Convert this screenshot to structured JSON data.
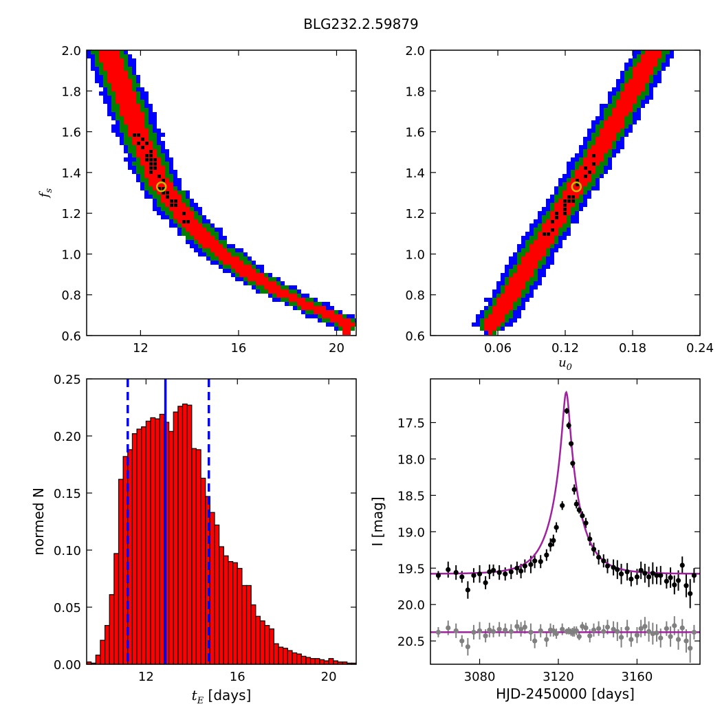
{
  "figure": {
    "title": "BLG232.2.59879"
  },
  "colors": {
    "level_1": "#0000ff",
    "level_2": "#008000",
    "level_3": "#ff0000",
    "level_4": "#000000",
    "best_fit_marker": "#bfbf00",
    "hist_bar": "#ff0000",
    "hist_lines": "#0000ff",
    "model_curve": "#a020a0",
    "data_points": "#000000",
    "residual_points": "#808080"
  },
  "chart_data": [
    {
      "id": "tE-fs",
      "type": "heatmap",
      "xlabel": "",
      "ylabel": "f_s",
      "xlim": [
        9.8,
        20.8
      ],
      "ylim": [
        0.6,
        2.0
      ],
      "xticks": [
        12,
        16,
        20
      ],
      "yticks": [
        0.6,
        0.8,
        1.0,
        1.2,
        1.4,
        1.6,
        1.8,
        2.0
      ],
      "best_fit": {
        "x": 12.85,
        "y": 1.33
      },
      "ridge": {
        "x": [
          10.65,
          11.3,
          12.05,
          12.85,
          13.8,
          14.85,
          16.2,
          17.6,
          19.3,
          20.4
        ],
        "y": [
          2.0,
          1.8,
          1.55,
          1.33,
          1.18,
          1.05,
          0.92,
          0.82,
          0.72,
          0.66
        ]
      },
      "half_widths": [
        0.42,
        0.66,
        0.92
      ],
      "core_half_width": 0.22,
      "core_y_range": [
        1.14,
        1.6
      ]
    },
    {
      "id": "u0-fs",
      "type": "heatmap",
      "xlabel": "u_0",
      "ylabel": "",
      "xlim": [
        0.0,
        0.24
      ],
      "ylim": [
        0.6,
        2.0
      ],
      "xticks": [
        0.06,
        0.12,
        0.18,
        0.24
      ],
      "yticks": [
        0.6,
        0.8,
        1.0,
        1.2,
        1.4,
        1.6,
        1.8,
        2.0
      ],
      "best_fit": {
        "x": 0.13,
        "y": 1.33
      },
      "ridge": {
        "x": [
          0.054,
          0.072,
          0.088,
          0.104,
          0.12,
          0.13,
          0.144,
          0.162,
          0.182,
          0.2
        ],
        "y": [
          0.64,
          0.8,
          0.95,
          1.1,
          1.24,
          1.33,
          1.45,
          1.62,
          1.82,
          2.0
        ]
      },
      "half_widths": [
        0.0085,
        0.0135,
        0.019
      ],
      "core_half_width": 0.0045,
      "core_y_range": [
        1.08,
        1.52
      ]
    },
    {
      "id": "tE-hist",
      "type": "bar",
      "xlabel": "t_E",
      "xlabel_unit": "[days]",
      "ylabel": "normed N",
      "xlim": [
        9.4,
        21.2
      ],
      "ylim": [
        0.0,
        0.25
      ],
      "xticks": [
        12,
        16,
        20
      ],
      "yticks": [
        0.0,
        0.05,
        0.1,
        0.15,
        0.2,
        0.25
      ],
      "bin_start": 9.4,
      "bin_width": 0.2,
      "values": [
        0.002,
        0.001,
        0.008,
        0.021,
        0.034,
        0.061,
        0.097,
        0.162,
        0.182,
        0.188,
        0.202,
        0.206,
        0.208,
        0.213,
        0.216,
        0.215,
        0.219,
        0.212,
        0.204,
        0.221,
        0.226,
        0.228,
        0.227,
        0.189,
        0.188,
        0.163,
        0.147,
        0.133,
        0.122,
        0.103,
        0.095,
        0.09,
        0.089,
        0.084,
        0.069,
        0.069,
        0.052,
        0.042,
        0.038,
        0.034,
        0.031,
        0.018,
        0.015,
        0.014,
        0.012,
        0.01,
        0.009,
        0.007,
        0.006,
        0.005,
        0.005,
        0.004,
        0.003,
        0.005,
        0.003,
        0.002,
        0.002,
        0.001,
        0.001
      ],
      "median": 12.85,
      "lower": 11.2,
      "upper": 14.75
    },
    {
      "id": "lightcurve",
      "type": "scatter",
      "xlabel": "HJD-2450000 [days]",
      "ylabel": "I [mag]",
      "xlim": [
        3055,
        3192
      ],
      "ylim": [
        20.82,
        16.9
      ],
      "xticks": [
        3080,
        3120,
        3160
      ],
      "yticks": [
        17.5,
        18.0,
        18.5,
        19.0,
        19.5,
        20.0,
        20.5
      ],
      "model": {
        "t0": 3124.0,
        "u0": 0.13,
        "tE": 12.85,
        "fs": 1.33,
        "baseline": 19.58
      },
      "residual_baseline": 20.38,
      "points": {
        "t": [
          3059,
          3064,
          3068,
          3071,
          3074,
          3077,
          3080,
          3083,
          3085,
          3087,
          3090,
          3093,
          3096,
          3099,
          3101,
          3103,
          3106,
          3108,
          3111,
          3114,
          3116,
          3117.5,
          3119,
          3122,
          3124.3,
          3125.3,
          3126.5,
          3127.3,
          3128.1,
          3129.2,
          3130.6,
          3132.2,
          3134,
          3136,
          3138,
          3140.5,
          3143,
          3145,
          3148,
          3150,
          3152,
          3155,
          3157,
          3160,
          3162,
          3164,
          3166,
          3168,
          3170,
          3172,
          3175,
          3177,
          3179,
          3181,
          3183,
          3185,
          3187,
          3189
        ],
        "mag": [
          19.6,
          19.52,
          19.56,
          19.62,
          19.8,
          19.6,
          19.58,
          19.7,
          19.55,
          19.53,
          19.56,
          19.58,
          19.55,
          19.5,
          19.54,
          19.47,
          19.45,
          19.4,
          19.41,
          19.32,
          19.18,
          19.12,
          18.94,
          18.64,
          17.34,
          17.54,
          17.79,
          18.06,
          18.42,
          18.62,
          18.7,
          18.78,
          18.88,
          19.1,
          19.24,
          19.35,
          19.4,
          19.47,
          19.49,
          19.52,
          19.58,
          19.55,
          19.65,
          19.62,
          19.53,
          19.57,
          19.62,
          19.57,
          19.6,
          19.6,
          19.68,
          19.63,
          19.73,
          19.67,
          19.46,
          19.74,
          19.85,
          19.6
        ],
        "err": [
          0.06,
          0.11,
          0.1,
          0.08,
          0.12,
          0.1,
          0.12,
          0.09,
          0.1,
          0.08,
          0.1,
          0.09,
          0.1,
          0.09,
          0.1,
          0.09,
          0.12,
          0.1,
          0.09,
          0.08,
          0.09,
          0.08,
          0.07,
          0.06,
          0.04,
          0.05,
          0.05,
          0.06,
          0.07,
          0.06,
          0.05,
          0.06,
          0.07,
          0.09,
          0.09,
          0.1,
          0.09,
          0.1,
          0.11,
          0.13,
          0.14,
          0.12,
          0.1,
          0.11,
          0.12,
          0.13,
          0.14,
          0.15,
          0.12,
          0.13,
          0.1,
          0.14,
          0.13,
          0.14,
          0.12,
          0.16,
          0.2,
          0.1
        ]
      },
      "residuals": {
        "t": [
          3059,
          3064,
          3068,
          3071,
          3074,
          3077,
          3080,
          3083,
          3085,
          3087,
          3090,
          3093,
          3096,
          3099,
          3101,
          3103,
          3106,
          3108,
          3111,
          3114,
          3116,
          3117.5,
          3119,
          3122,
          3124.3,
          3125.3,
          3126.5,
          3127.3,
          3128.1,
          3129.2,
          3130.6,
          3132.2,
          3134,
          3136,
          3138,
          3140.5,
          3143,
          3145,
          3148,
          3150,
          3152,
          3155,
          3157,
          3160,
          3162,
          3164,
          3166,
          3168,
          3170,
          3172,
          3175,
          3177,
          3179,
          3181,
          3183,
          3185,
          3187,
          3189
        ],
        "mag": [
          20.38,
          20.32,
          20.36,
          20.5,
          20.58,
          20.38,
          20.36,
          20.43,
          20.35,
          20.37,
          20.34,
          20.35,
          20.37,
          20.3,
          20.34,
          20.31,
          20.38,
          20.5,
          20.36,
          20.48,
          20.35,
          20.36,
          20.4,
          20.34,
          20.37,
          20.36,
          20.38,
          20.38,
          20.37,
          20.36,
          20.44,
          20.3,
          20.32,
          20.43,
          20.35,
          20.33,
          20.37,
          20.31,
          20.34,
          20.37,
          20.45,
          20.33,
          20.48,
          20.42,
          20.33,
          20.3,
          20.37,
          20.4,
          20.39,
          20.46,
          20.33,
          20.44,
          20.29,
          20.48,
          20.32,
          20.5,
          20.6,
          20.38
        ],
        "err": [
          0.07,
          0.1,
          0.1,
          0.08,
          0.12,
          0.1,
          0.12,
          0.09,
          0.1,
          0.08,
          0.1,
          0.09,
          0.1,
          0.09,
          0.1,
          0.09,
          0.12,
          0.1,
          0.09,
          0.1,
          0.09,
          0.08,
          0.07,
          0.08,
          0.04,
          0.05,
          0.05,
          0.06,
          0.07,
          0.06,
          0.05,
          0.06,
          0.07,
          0.09,
          0.09,
          0.1,
          0.09,
          0.1,
          0.11,
          0.13,
          0.14,
          0.12,
          0.1,
          0.11,
          0.12,
          0.13,
          0.14,
          0.15,
          0.12,
          0.13,
          0.1,
          0.14,
          0.13,
          0.14,
          0.12,
          0.16,
          0.2,
          0.1
        ]
      }
    }
  ]
}
